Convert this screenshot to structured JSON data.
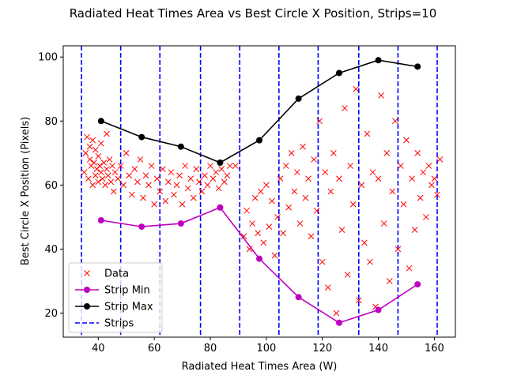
{
  "chart_data": {
    "type": "scatter",
    "title": "Radiated Heat Times Area vs Best Circle X Position, Strips=10",
    "xlabel": "Radiated Heat Times Area (W)",
    "ylabel": "Best Circle X Position (Pixels)",
    "xlim": [
      27.5,
      167.5
    ],
    "ylim": [
      12.5,
      103.5
    ],
    "xticks": [
      40,
      60,
      80,
      100,
      120,
      140,
      160
    ],
    "yticks": [
      20,
      40,
      60,
      80,
      100
    ],
    "grid": false,
    "legend_position": "bottom-left",
    "legend": [
      "Data",
      "Strip Min",
      "Strip Max",
      "Strips"
    ],
    "series": [
      {
        "name": "Data",
        "style": "marker-x",
        "color": "#ff0000",
        "points": [
          [
            35,
            64
          ],
          [
            35.5,
            70
          ],
          [
            36,
            75
          ],
          [
            36.5,
            62
          ],
          [
            37,
            68
          ],
          [
            37,
            72
          ],
          [
            37.5,
            66
          ],
          [
            38,
            60
          ],
          [
            38,
            74
          ],
          [
            38.5,
            67
          ],
          [
            39,
            63
          ],
          [
            39,
            71
          ],
          [
            39.5,
            65
          ],
          [
            40,
            69
          ],
          [
            40,
            61
          ],
          [
            40.5,
            66
          ],
          [
            41,
            64
          ],
          [
            41,
            73
          ],
          [
            41.5,
            62
          ],
          [
            42,
            67
          ],
          [
            42.5,
            60
          ],
          [
            43,
            65
          ],
          [
            43,
            76
          ],
          [
            43.5,
            63
          ],
          [
            44,
            68
          ],
          [
            44.5,
            61
          ],
          [
            45,
            66
          ],
          [
            45.5,
            58
          ],
          [
            46,
            64
          ],
          [
            47,
            62
          ],
          [
            48,
            66
          ],
          [
            49,
            60
          ],
          [
            50,
            70
          ],
          [
            51,
            63
          ],
          [
            52,
            57
          ],
          [
            53,
            65
          ],
          [
            54,
            61
          ],
          [
            55,
            68
          ],
          [
            56,
            56
          ],
          [
            57,
            63
          ],
          [
            58,
            60
          ],
          [
            59,
            66
          ],
          [
            60,
            54
          ],
          [
            61,
            62
          ],
          [
            62,
            58
          ],
          [
            63,
            65
          ],
          [
            64,
            55
          ],
          [
            65,
            61
          ],
          [
            66,
            64
          ],
          [
            67,
            57
          ],
          [
            68,
            60
          ],
          [
            69,
            63
          ],
          [
            70,
            54
          ],
          [
            71,
            66
          ],
          [
            72,
            59
          ],
          [
            73,
            62
          ],
          [
            74,
            56
          ],
          [
            75,
            65
          ],
          [
            76,
            61
          ],
          [
            77,
            58
          ],
          [
            78,
            63
          ],
          [
            79,
            60
          ],
          [
            80,
            66
          ],
          [
            81,
            62
          ],
          [
            82,
            64
          ],
          [
            83,
            59
          ],
          [
            84,
            65
          ],
          [
            85,
            61
          ],
          [
            86,
            63
          ],
          [
            87,
            66
          ],
          [
            89,
            66
          ],
          [
            92,
            44
          ],
          [
            93,
            52
          ],
          [
            94,
            40
          ],
          [
            95,
            48
          ],
          [
            96,
            56
          ],
          [
            97,
            45
          ],
          [
            98,
            58
          ],
          [
            99,
            42
          ],
          [
            100,
            60
          ],
          [
            101,
            47
          ],
          [
            102,
            55
          ],
          [
            103,
            38
          ],
          [
            104,
            50
          ],
          [
            105,
            62
          ],
          [
            106,
            45
          ],
          [
            107,
            66
          ],
          [
            108,
            53
          ],
          [
            109,
            70
          ],
          [
            110,
            58
          ],
          [
            111,
            64
          ],
          [
            112,
            48
          ],
          [
            113,
            72
          ],
          [
            114,
            56
          ],
          [
            115,
            62
          ],
          [
            116,
            44
          ],
          [
            117,
            68
          ],
          [
            118,
            52
          ],
          [
            119,
            80
          ],
          [
            120,
            36
          ],
          [
            121,
            64
          ],
          [
            122,
            28
          ],
          [
            123,
            58
          ],
          [
            124,
            70
          ],
          [
            125,
            20
          ],
          [
            126,
            62
          ],
          [
            127,
            46
          ],
          [
            128,
            84
          ],
          [
            129,
            32
          ],
          [
            130,
            66
          ],
          [
            131,
            54
          ],
          [
            132,
            90
          ],
          [
            133,
            24
          ],
          [
            134,
            60
          ],
          [
            135,
            42
          ],
          [
            136,
            76
          ],
          [
            137,
            36
          ],
          [
            138,
            64
          ],
          [
            139,
            22
          ],
          [
            140,
            62
          ],
          [
            141,
            88
          ],
          [
            142,
            48
          ],
          [
            143,
            70
          ],
          [
            144,
            30
          ],
          [
            145,
            58
          ],
          [
            146,
            80
          ],
          [
            147,
            40
          ],
          [
            148,
            66
          ],
          [
            149,
            54
          ],
          [
            150,
            74
          ],
          [
            151,
            34
          ],
          [
            152,
            62
          ],
          [
            153,
            46
          ],
          [
            154,
            70
          ],
          [
            155,
            56
          ],
          [
            156,
            64
          ],
          [
            157,
            50
          ],
          [
            158,
            66
          ],
          [
            159,
            60
          ],
          [
            160,
            62
          ],
          [
            161,
            57
          ],
          [
            162,
            68
          ]
        ]
      },
      {
        "name": "Strip Min",
        "style": "line-marker",
        "color": "#bf00bf",
        "x": [
          41,
          55.5,
          69.5,
          83.5,
          97.5,
          111.5,
          126,
          140,
          154
        ],
        "y": [
          49,
          47,
          48,
          53,
          37,
          25,
          17,
          21,
          29
        ]
      },
      {
        "name": "Strip Max",
        "style": "line-marker",
        "color": "#000000",
        "x": [
          41,
          55.5,
          69.5,
          83.5,
          97.5,
          111.5,
          126,
          140,
          154
        ],
        "y": [
          80,
          75,
          72,
          67,
          74,
          87,
          95,
          99,
          97
        ]
      },
      {
        "name": "Strips",
        "style": "vertical-dashed",
        "color": "#0000ff",
        "x": [
          34,
          48,
          62,
          76.5,
          90.5,
          104.5,
          118.5,
          133,
          147,
          161
        ]
      }
    ]
  }
}
